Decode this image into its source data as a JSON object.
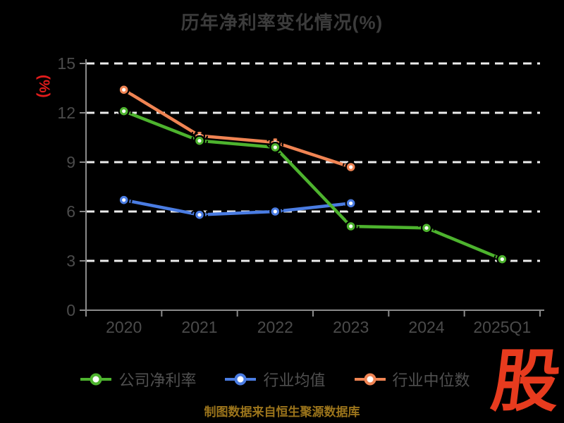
{
  "title": "历年净利率变化情况(%)",
  "chart_data": {
    "type": "line",
    "title": "历年净利率变化情况(%)",
    "ylabel": "(%)",
    "xlabel": "",
    "categories": [
      "2020",
      "2021",
      "2022",
      "2023",
      "2024",
      "2025Q1"
    ],
    "series": [
      {
        "id": "company-net-margin",
        "name": "公司净利率",
        "color": "#4db32e",
        "values": [
          12.1,
          10.3,
          9.9,
          5.1,
          5.0,
          3.1
        ]
      },
      {
        "id": "industry-mean",
        "name": "行业均值",
        "color": "#4a7ce2",
        "values": [
          6.7,
          5.8,
          6.0,
          6.5,
          null,
          null
        ]
      },
      {
        "id": "industry-median",
        "name": "行业中位数",
        "color": "#f08453",
        "values": [
          13.4,
          10.6,
          10.2,
          8.7,
          null,
          null
        ]
      }
    ],
    "ylim": [
      0,
      15
    ],
    "yticks": [
      0,
      3,
      6,
      9,
      12,
      15
    ],
    "grid": true,
    "grid_style": "dashed-white",
    "legend_position": "bottom",
    "marker": "white-filled-circle"
  },
  "footer": {
    "source_note": "制图数据来自恒生聚源数据库"
  },
  "logo": {
    "text": "股"
  },
  "colors": {
    "background": "#000000",
    "title_text": "#3c3c3c",
    "axis_line": "#8a8a8a",
    "tick_label": "#4b4b4b",
    "grid_line": "#ececec",
    "ylabel_red": "#e11c1c",
    "legend_text": "#505050",
    "footer_gold": "#9b741b",
    "logo_red": "#e73b1e"
  }
}
